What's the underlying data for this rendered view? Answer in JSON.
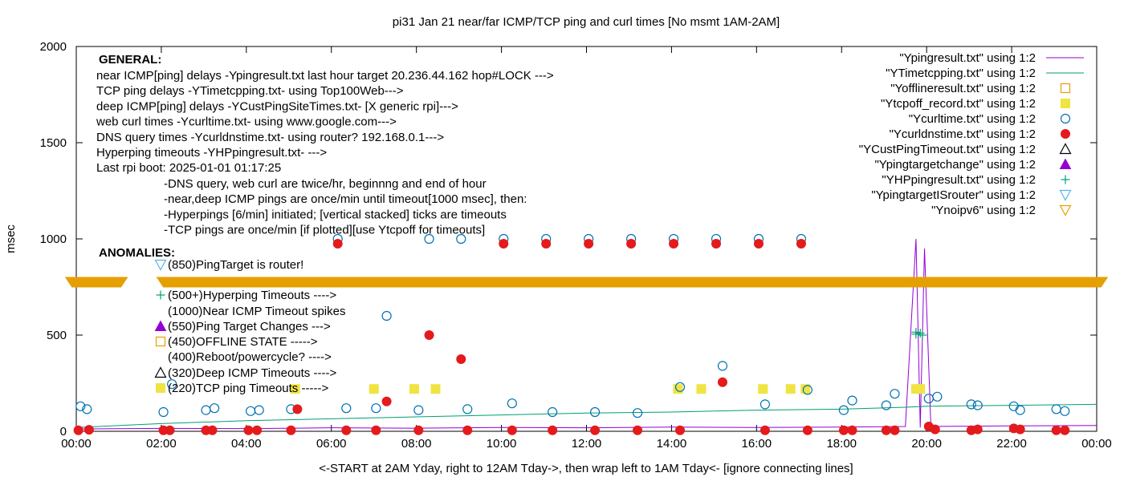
{
  "chart_data": {
    "type": "scatter",
    "title": "pi31 Jan 21  near/far ICMP/TCP ping and curl times [No msmt 1AM-2AM]",
    "xlabel": "<-START at 2AM Yday, right to 12AM Tday->, then wrap left to 1AM Tday<- [ignore connecting lines]",
    "ylabel": "msec",
    "xlim": [
      0,
      24
    ],
    "ylim": [
      0,
      2000
    ],
    "grid": false,
    "legend_position": "top-right",
    "x_ticks": [
      {
        "v": 0,
        "label": "00:00"
      },
      {
        "v": 2,
        "label": "02:00"
      },
      {
        "v": 4,
        "label": "04:00"
      },
      {
        "v": 6,
        "label": "06:00"
      },
      {
        "v": 8,
        "label": "08:00"
      },
      {
        "v": 10,
        "label": "10:00"
      },
      {
        "v": 12,
        "label": "12:00"
      },
      {
        "v": 14,
        "label": "14:00"
      },
      {
        "v": 16,
        "label": "16:00"
      },
      {
        "v": 18,
        "label": "18:00"
      },
      {
        "v": 20,
        "label": "20:00"
      },
      {
        "v": 22,
        "label": "22:00"
      },
      {
        "v": 24,
        "label": "00:00"
      }
    ],
    "y_ticks": [
      {
        "v": 0,
        "label": "0"
      },
      {
        "v": 500,
        "label": "500"
      },
      {
        "v": 1000,
        "label": "1000"
      },
      {
        "v": 1500,
        "label": "1500"
      },
      {
        "v": 2000,
        "label": "2000"
      }
    ],
    "series": [
      {
        "name": "\"Ypingresult.txt\" using 1:2",
        "style": "line",
        "color": "#9400d3",
        "points": [
          [
            0,
            12
          ],
          [
            2,
            15
          ],
          [
            4,
            14
          ],
          [
            6,
            18
          ],
          [
            8,
            16
          ],
          [
            10,
            20
          ],
          [
            12,
            18
          ],
          [
            14,
            22
          ],
          [
            16,
            20
          ],
          [
            18,
            22
          ],
          [
            19.5,
            25
          ],
          [
            19.75,
            1000
          ],
          [
            19.85,
            20
          ],
          [
            19.95,
            950
          ],
          [
            20.1,
            25
          ],
          [
            22,
            28
          ],
          [
            24,
            30
          ]
        ]
      },
      {
        "name": "\"YTimetcpping.txt\" using 1:2",
        "style": "line",
        "color": "#009e73",
        "points": [
          [
            0,
            20
          ],
          [
            2,
            40
          ],
          [
            4,
            55
          ],
          [
            6,
            65
          ],
          [
            8,
            75
          ],
          [
            10,
            85
          ],
          [
            12,
            95
          ],
          [
            14,
            100
          ],
          [
            16,
            110
          ],
          [
            18,
            115
          ],
          [
            19.5,
            125
          ],
          [
            20,
            130
          ],
          [
            22,
            135
          ],
          [
            24,
            140
          ]
        ]
      },
      {
        "name": "\"Yofflineresult.txt\" using 1:2",
        "style": "open-square",
        "color": "#e69f00",
        "points": []
      },
      {
        "name": "\"Ytcpoff_record.txt\" using 1:2",
        "style": "filled-square",
        "color": "#f0e442",
        "points": [
          [
            5.15,
            220
          ],
          [
            7,
            220
          ],
          [
            7.95,
            220
          ],
          [
            8.45,
            220
          ],
          [
            14.15,
            220
          ],
          [
            14.7,
            220
          ],
          [
            16.15,
            220
          ],
          [
            16.8,
            220
          ],
          [
            17.15,
            220
          ],
          [
            19.75,
            220
          ],
          [
            19.85,
            220
          ]
        ]
      },
      {
        "name": "\"Ycurltime.txt\" using 1:2",
        "style": "open-circle",
        "color": "#0072b2",
        "points": [
          [
            0.1,
            130
          ],
          [
            0.25,
            115
          ],
          [
            2.05,
            100
          ],
          [
            2.25,
            245
          ],
          [
            3.05,
            110
          ],
          [
            3.25,
            120
          ],
          [
            4.1,
            105
          ],
          [
            4.3,
            110
          ],
          [
            5.05,
            115
          ],
          [
            6.15,
            1000
          ],
          [
            6.35,
            120
          ],
          [
            7.05,
            120
          ],
          [
            7.3,
            600
          ],
          [
            8.3,
            1000
          ],
          [
            8.05,
            110
          ],
          [
            9.05,
            1000
          ],
          [
            9.2,
            115
          ],
          [
            10.05,
            1000
          ],
          [
            10.25,
            145
          ],
          [
            11.05,
            1000
          ],
          [
            11.2,
            100
          ],
          [
            12.05,
            1000
          ],
          [
            12.2,
            100
          ],
          [
            13.05,
            1000
          ],
          [
            13.2,
            95
          ],
          [
            14.05,
            1000
          ],
          [
            14.2,
            230
          ],
          [
            15.05,
            1000
          ],
          [
            15.2,
            340
          ],
          [
            16.05,
            1000
          ],
          [
            16.2,
            140
          ],
          [
            17.05,
            1000
          ],
          [
            17.2,
            215
          ],
          [
            18.05,
            110
          ],
          [
            18.25,
            160
          ],
          [
            19.05,
            135
          ],
          [
            19.25,
            195
          ],
          [
            20.05,
            170
          ],
          [
            20.25,
            180
          ],
          [
            21.05,
            140
          ],
          [
            21.2,
            135
          ],
          [
            22.05,
            130
          ],
          [
            22.2,
            110
          ],
          [
            23.05,
            115
          ],
          [
            23.25,
            105
          ]
        ]
      },
      {
        "name": "\"Ycurldnstime.txt\" using 1:2",
        "style": "filled-circle",
        "color": "#e41a1c",
        "points": [
          [
            0.05,
            5
          ],
          [
            0.3,
            8
          ],
          [
            2.05,
            5
          ],
          [
            2.2,
            5
          ],
          [
            3.05,
            5
          ],
          [
            3.2,
            5
          ],
          [
            4.05,
            5
          ],
          [
            4.25,
            5
          ],
          [
            5.05,
            5
          ],
          [
            5.2,
            115
          ],
          [
            6.15,
            975
          ],
          [
            6.35,
            5
          ],
          [
            7.05,
            5
          ],
          [
            7.3,
            155
          ],
          [
            8.05,
            5
          ],
          [
            8.3,
            500
          ],
          [
            9.05,
            375
          ],
          [
            9.2,
            5
          ],
          [
            10.05,
            975
          ],
          [
            10.25,
            5
          ],
          [
            11.05,
            975
          ],
          [
            11.2,
            5
          ],
          [
            12.05,
            975
          ],
          [
            12.2,
            5
          ],
          [
            13.05,
            975
          ],
          [
            13.2,
            5
          ],
          [
            14.05,
            975
          ],
          [
            14.2,
            5
          ],
          [
            15.05,
            975
          ],
          [
            15.2,
            255
          ],
          [
            16.05,
            975
          ],
          [
            16.2,
            5
          ],
          [
            17.05,
            975
          ],
          [
            17.2,
            5
          ],
          [
            18.05,
            5
          ],
          [
            18.25,
            5
          ],
          [
            19.05,
            5
          ],
          [
            19.25,
            5
          ],
          [
            20.05,
            25
          ],
          [
            20.2,
            10
          ],
          [
            21.05,
            5
          ],
          [
            21.2,
            10
          ],
          [
            22.05,
            15
          ],
          [
            22.2,
            10
          ],
          [
            23.05,
            5
          ],
          [
            23.25,
            5
          ]
        ]
      },
      {
        "name": "\"YCustPingTimeout.txt\" using 1:2",
        "style": "open-triangle",
        "color": "#000000",
        "points": []
      },
      {
        "name": "\"Ypingtargetchange\" using 1:2",
        "style": "filled-triangle",
        "color": "#9400d3",
        "points": []
      },
      {
        "name": "\"YHPpingresult.txt\" using 1:2",
        "style": "plus",
        "color": "#009e73",
        "points": [
          [
            19.75,
            515
          ],
          [
            19.75,
            505
          ],
          [
            19.85,
            510
          ],
          [
            19.9,
            500
          ]
        ]
      },
      {
        "name": "\"YpingtargetISrouter\" using 1:2",
        "style": "open-inv-triangle",
        "color": "#56b4e9",
        "points": []
      },
      {
        "name": "\"Ynoipv6\" using 1:2",
        "style": "open-inv-triangle-band",
        "color": "#e69f00",
        "points": [
          [
            -0.1,
            775
          ],
          [
            1.05,
            775
          ],
          [
            2.05,
            775
          ],
          [
            24.1,
            775
          ]
        ]
      }
    ],
    "annotations": {
      "general_header": "GENERAL:",
      "general_lines": [
        "near ICMP[ping] delays -Ypingresult.txt last hour target 20.236.44.162 hop#LOCK --->",
        "TCP ping delays -YTimetcpping.txt- using Top100Web--->",
        "deep ICMP[ping] delays -YCustPingSiteTimes.txt- [X generic rpi]--->",
        "web curl times -Ycurltime.txt- using www.google.com--->",
        "DNS query times -Ycurldnstime.txt- using router? 192.168.0.1--->",
        "Hyperping timeouts -YHPpingresult.txt- --->",
        "Last rpi boot: 2025-01-01 01:17:25"
      ],
      "notes": [
        "-DNS query, web curl are twice/hr, beginnng and end of hour",
        "-near,deep ICMP pings are once/min until timeout[1000 msec], then:",
        "  -Hyperpings [6/min] initiated; [vertical stacked] ticks are timeouts",
        "-TCP pings are once/min [if plotted][use Ytcpoff for timeouts]"
      ],
      "anomalies_header": "ANOMALIES:",
      "anomalies": [
        {
          "text": "(850)PingTarget is router!",
          "marker": "open-inv-triangle",
          "color": "#56b4e9"
        },
        {
          "text": "(500+)Hyperping Timeouts ---->",
          "marker": "plus",
          "color": "#009e73"
        },
        {
          "text": "(1000)Near ICMP Timeout spikes",
          "marker": "none",
          "color": "#000000"
        },
        {
          "text": "(550)Ping Target Changes --->",
          "marker": "filled-triangle",
          "color": "#9400d3"
        },
        {
          "text": "(450)OFFLINE STATE ----->",
          "marker": "open-square",
          "color": "#e69f00"
        },
        {
          "text": "(400)Reboot/powercycle? ---->",
          "marker": "none",
          "color": "#000000"
        },
        {
          "text": "(320)Deep ICMP Timeouts ---->",
          "marker": "open-triangle",
          "color": "#000000"
        },
        {
          "text": "(220)TCP ping Timeouts ----->",
          "marker": "filled-square",
          "color": "#f0e442"
        }
      ]
    }
  }
}
